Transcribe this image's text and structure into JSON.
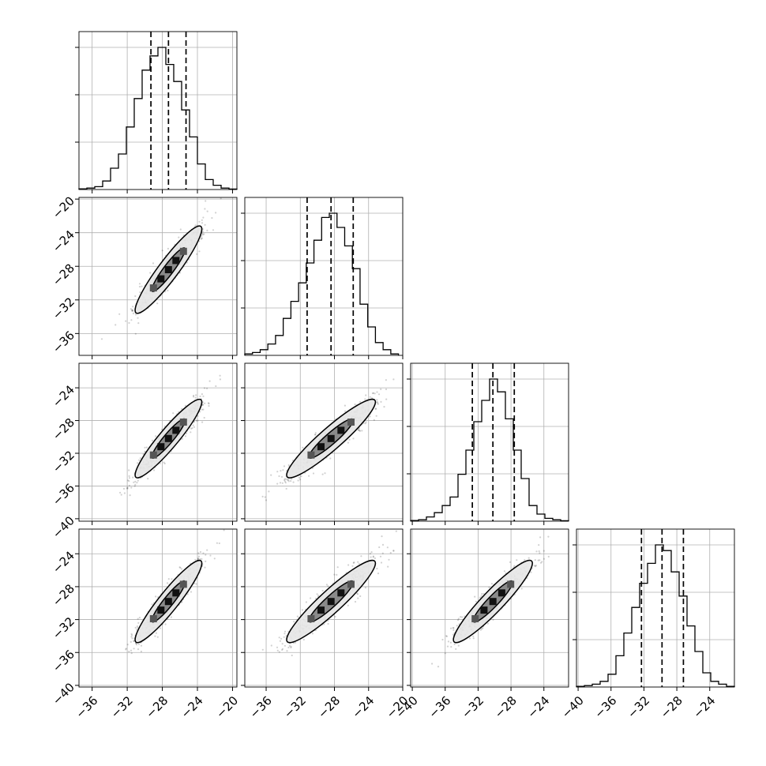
{
  "chart_data": {
    "type": "corner",
    "n_params": 4,
    "grid": true,
    "colors": {
      "axes": "#000000",
      "grid": "#b0b0b0",
      "contour_inner": "#7a7a7a",
      "contour_outer": "#e6e6e6",
      "points": "#000000"
    },
    "params": [
      {
        "mean": -27.3,
        "sd": 1.9,
        "q16": -29.3,
        "q50": -27.3,
        "q84": -25.3
      },
      {
        "mean": -28.4,
        "sd": 2.6,
        "q16": -31.2,
        "q50": -28.4,
        "q84": -25.8
      },
      {
        "mean": -30.2,
        "sd": 2.4,
        "q16": -32.7,
        "q50": -30.2,
        "q84": -27.6
      },
      {
        "mean": -29.8,
        "sd": 2.5,
        "q16": -32.3,
        "q50": -29.8,
        "q84": -27.2
      }
    ],
    "ranges": [
      {
        "xlim": [
          -37.5,
          -19.5
        ]
      },
      {
        "xlim": [
          -38.5,
          -20.0
        ],
        "ylim": [
          -38.6,
          -19.8
        ]
      },
      {
        "xlim": [
          -40.2,
          -21.0
        ],
        "ylim": [
          -40.3,
          -21.0
        ]
      },
      {
        "xlim": [
          -40.2,
          -21.0
        ],
        "ylim": [
          -40.2,
          -21.0
        ]
      }
    ],
    "histograms": [
      {
        "edges": [
          -37.5,
          -36.6,
          -35.7,
          -34.8,
          -33.9,
          -33.0,
          -32.1,
          -31.2,
          -30.3,
          -29.4,
          -28.5,
          -27.6,
          -26.7,
          -25.8,
          -24.9,
          -24.0,
          -23.1,
          -22.2,
          -21.3,
          -20.4,
          -19.5
        ],
        "counts": [
          0.005,
          0.01,
          0.02,
          0.06,
          0.15,
          0.25,
          0.44,
          0.64,
          0.84,
          0.94,
          1.0,
          0.88,
          0.76,
          0.56,
          0.37,
          0.18,
          0.07,
          0.03,
          0.01,
          0.003
        ]
      },
      {
        "edges": [
          -38.5,
          -37.6,
          -36.7,
          -35.8,
          -34.9,
          -34.0,
          -33.1,
          -32.2,
          -31.3,
          -30.4,
          -29.5,
          -28.6,
          -27.7,
          -26.8,
          -25.9,
          -25.0,
          -24.1,
          -23.2,
          -22.3,
          -21.4,
          -20.5
        ],
        "counts": [
          0.01,
          0.02,
          0.04,
          0.08,
          0.14,
          0.26,
          0.38,
          0.51,
          0.65,
          0.81,
          0.97,
          1.0,
          0.9,
          0.77,
          0.61,
          0.36,
          0.2,
          0.09,
          0.04,
          0.01
        ]
      },
      {
        "edges": [
          -40.2,
          -39.24,
          -38.28,
          -37.32,
          -36.36,
          -35.4,
          -34.44,
          -33.48,
          -32.52,
          -31.56,
          -30.6,
          -29.64,
          -28.68,
          -27.72,
          -26.76,
          -25.8,
          -24.84,
          -23.88,
          -22.92,
          -21.96,
          -21.0
        ],
        "counts": [
          0.005,
          0.01,
          0.03,
          0.06,
          0.11,
          0.17,
          0.33,
          0.5,
          0.7,
          0.85,
          1.0,
          0.91,
          0.72,
          0.5,
          0.3,
          0.11,
          0.05,
          0.02,
          0.01,
          0.003
        ]
      },
      {
        "edges": [
          -40.2,
          -39.24,
          -38.28,
          -37.32,
          -36.36,
          -35.4,
          -34.44,
          -33.48,
          -32.52,
          -31.56,
          -30.6,
          -29.64,
          -28.68,
          -27.72,
          -26.76,
          -25.8,
          -24.84,
          -23.88,
          -22.92,
          -21.96,
          -21.0
        ],
        "counts": [
          0.005,
          0.01,
          0.02,
          0.04,
          0.09,
          0.22,
          0.38,
          0.56,
          0.73,
          0.87,
          1.0,
          0.96,
          0.81,
          0.64,
          0.43,
          0.25,
          0.1,
          0.04,
          0.02,
          0.005
        ]
      }
    ],
    "correlation": 0.93,
    "contour_sigmas": [
      1.0,
      2.0
    ],
    "scatter_points_per_panel": 650,
    "panels": [
      {
        "row": 1,
        "col": 0
      },
      {
        "row": 2,
        "col": 0
      },
      {
        "row": 2,
        "col": 1
      },
      {
        "row": 3,
        "col": 0
      },
      {
        "row": 3,
        "col": 1
      },
      {
        "row": 3,
        "col": 2
      }
    ],
    "y_tick_labels": [
      [],
      [
        "−36",
        "−32",
        "−28",
        "−24",
        "−20"
      ],
      [
        "−40",
        "−36",
        "−32",
        "−28",
        "−24"
      ],
      [
        "−40",
        "−36",
        "−32",
        "−28",
        "−24"
      ]
    ],
    "x_tick_labels": [
      [
        "−36",
        "−32",
        "−28",
        "−24",
        "−20"
      ],
      [
        "−36",
        "−32",
        "−28",
        "−24",
        "−20"
      ],
      [
        "−40",
        "−36",
        "−32",
        "−28",
        "−24"
      ],
      [
        "−40",
        "−36",
        "−32",
        "−28",
        "−24"
      ]
    ]
  }
}
